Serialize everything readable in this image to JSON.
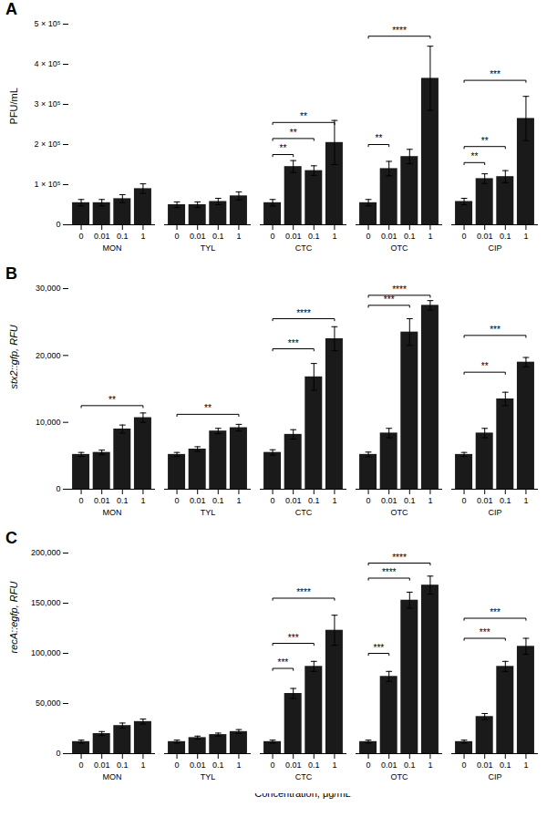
{
  "chart_data": [
    {
      "type": "bar",
      "title": "A",
      "ylabel": "PFU/mL",
      "categories": [
        "MON",
        "TYL",
        "CTC",
        "OTC",
        "CIP"
      ],
      "series": [
        {
          "name": "0",
          "color": "#1a1a1a",
          "values": [
            55000,
            50000,
            55000,
            55000,
            58000
          ],
          "errors": [
            8000,
            7000,
            8000,
            8000,
            8000
          ]
        },
        {
          "name": "0.01",
          "color": "#1a1a1a",
          "values": [
            55000,
            50000,
            145000,
            140000,
            115000
          ],
          "errors": [
            8000,
            7000,
            15000,
            18000,
            12000
          ]
        },
        {
          "name": "0.1",
          "color": "#1a1a1a",
          "values": [
            65000,
            58000,
            135000,
            170000,
            120000
          ],
          "errors": [
            10000,
            8000,
            12000,
            18000,
            15000
          ]
        },
        {
          "name": "1",
          "color": "#1a1a1a",
          "values": [
            90000,
            72000,
            205000,
            365000,
            265000
          ],
          "errors": [
            12000,
            10000,
            55000,
            80000,
            55000
          ]
        }
      ],
      "ylim": [
        0,
        500000
      ],
      "yticks": [
        0,
        {
          "value": 100000,
          "label": "1 × 10⁵"
        },
        {
          "value": 200000,
          "label": "2 × 10⁵"
        },
        {
          "value": 300000,
          "label": "3 × 10⁵"
        },
        {
          "value": 400000,
          "label": "4 × 10⁵"
        },
        {
          "value": 500000,
          "label": "5 × 10⁵"
        }
      ],
      "annotations": [
        {
          "category": "CTC",
          "from": "0",
          "to": "0.01",
          "text": "**",
          "y": 175000,
          "y_text": 182000
        },
        {
          "category": "CTC",
          "from": "0",
          "to": "0.1",
          "text": "**",
          "y": 215000,
          "y_text": 222000
        },
        {
          "category": "CTC",
          "from": "0",
          "to": "1",
          "text": "**",
          "y": 255000,
          "y_text": 262000
        },
        {
          "category": "OTC",
          "from": "0",
          "to": "0.01",
          "text": "**",
          "y": 200000,
          "y_text": 207000
        },
        {
          "category": "OTC",
          "from": "0",
          "to": "1",
          "text": "****",
          "y": 470000,
          "y_text": 477000
        },
        {
          "category": "CIP",
          "from": "0",
          "to": "0.01",
          "text": "**",
          "y": 155000,
          "y_text": 162000
        },
        {
          "category": "CIP",
          "from": "0",
          "to": "0.1",
          "text": "**",
          "y": 195000,
          "y_text": 202000
        },
        {
          "category": "CIP",
          "from": "0",
          "to": "1",
          "text": "***",
          "y": 360000,
          "y_text": 367000
        }
      ]
    },
    {
      "type": "bar",
      "title": "B",
      "ylabel": "stx2::gfp, RFU",
      "categories": [
        "MON",
        "TYL",
        "CTC",
        "OTC",
        "CIP"
      ],
      "series": [
        {
          "name": "0",
          "color": "#1a1a1a",
          "values": [
            5200,
            5200,
            5500,
            5200,
            5200
          ],
          "errors": [
            300,
            300,
            400,
            350,
            300
          ]
        },
        {
          "name": "0.01",
          "color": "#1a1a1a",
          "values": [
            5500,
            6000,
            8200,
            8400,
            8400
          ],
          "errors": [
            350,
            350,
            700,
            700,
            700
          ]
        },
        {
          "name": "0.1",
          "color": "#1a1a1a",
          "values": [
            9000,
            8700,
            16800,
            23500,
            13500
          ],
          "errors": [
            600,
            400,
            2000,
            2000,
            1000
          ]
        },
        {
          "name": "1",
          "color": "#1a1a1a",
          "values": [
            10700,
            9200,
            22500,
            27500,
            19000
          ],
          "errors": [
            700,
            500,
            1800,
            700,
            700
          ]
        }
      ],
      "ylim": [
        0,
        30000
      ],
      "yticks": [
        0,
        {
          "value": 10000,
          "label": "10,000"
        },
        {
          "value": 20000,
          "label": "20,000"
        },
        {
          "value": 30000,
          "label": "30,000"
        }
      ],
      "annotations": [
        {
          "category": "MON",
          "from": "0",
          "to": "1",
          "text": "**",
          "y": 12500,
          "y_text": 12900
        },
        {
          "category": "TYL",
          "from": "0",
          "to": "1",
          "text": "**",
          "y": 11200,
          "y_text": 11600
        },
        {
          "category": "CTC",
          "from": "0",
          "to": "0.1",
          "text": "***",
          "y": 21000,
          "y_text": 21400
        },
        {
          "category": "CTC",
          "from": "0",
          "to": "1",
          "text": "****",
          "y": 25500,
          "y_text": 25900
        },
        {
          "category": "OTC",
          "from": "0",
          "to": "0.1",
          "text": "***",
          "y": 27500,
          "y_text": 27900
        },
        {
          "category": "OTC",
          "from": "0",
          "to": "1",
          "text": "****",
          "y": 29000,
          "y_text": 29400
        },
        {
          "category": "CIP",
          "from": "0",
          "to": "0.1",
          "text": "**",
          "y": 17500,
          "y_text": 17900
        },
        {
          "category": "CIP",
          "from": "0",
          "to": "1",
          "text": "***",
          "y": 23000,
          "y_text": 23400
        }
      ]
    },
    {
      "type": "bar",
      "title": "C",
      "ylabel": "recA::egfp, RFU",
      "xlabel": "Concentration, μg/mL",
      "categories": [
        "MON",
        "TYL",
        "CTC",
        "OTC",
        "CIP"
      ],
      "series": [
        {
          "name": "0",
          "color": "#1a1a1a",
          "values": [
            12000,
            12000,
            12000,
            12000,
            12000
          ],
          "errors": [
            1500,
            1500,
            1500,
            1500,
            1500
          ]
        },
        {
          "name": "0.01",
          "color": "#1a1a1a",
          "values": [
            20000,
            16000,
            60000,
            77000,
            37000
          ],
          "errors": [
            2000,
            1500,
            5000,
            5000,
            3000
          ]
        },
        {
          "name": "0.1",
          "color": "#1a1a1a",
          "values": [
            28000,
            19000,
            87000,
            153000,
            87000
          ],
          "errors": [
            2500,
            1500,
            5000,
            8000,
            5000
          ]
        },
        {
          "name": "1",
          "color": "#1a1a1a",
          "values": [
            32000,
            22000,
            123000,
            168000,
            107000
          ],
          "errors": [
            2500,
            2000,
            15000,
            9000,
            8000
          ]
        }
      ],
      "ylim": [
        0,
        200000
      ],
      "yticks": [
        0,
        {
          "value": 50000,
          "label": "50,000"
        },
        {
          "value": 100000,
          "label": "100,000"
        },
        {
          "value": 150000,
          "label": "150,000"
        },
        {
          "value": 200000,
          "label": "200,000"
        }
      ],
      "annotations": [
        {
          "category": "CTC",
          "from": "0",
          "to": "0.01",
          "text": "***",
          "y": 85000,
          "y_text": 87500
        },
        {
          "category": "CTC",
          "from": "0",
          "to": "0.1",
          "text": "***",
          "y": 110000,
          "y_text": 112500
        },
        {
          "category": "CTC",
          "from": "0",
          "to": "1",
          "text": "****",
          "y": 155000,
          "y_text": 157500
        },
        {
          "category": "OTC",
          "from": "0",
          "to": "0.01",
          "text": "***",
          "y": 100000,
          "y_text": 102500
        },
        {
          "category": "OTC",
          "from": "0",
          "to": "0.1",
          "text": "****",
          "y": 175000,
          "y_text": 177500
        },
        {
          "category": "OTC",
          "from": "0",
          "to": "1",
          "text": "****",
          "y": 190000,
          "y_text": 192500
        },
        {
          "category": "CIP",
          "from": "0",
          "to": "0.1",
          "text": "***",
          "y": 115000,
          "y_text": 117500
        },
        {
          "category": "CIP",
          "from": "0",
          "to": "1",
          "text": "***",
          "y": 135000,
          "y_text": 137500
        }
      ]
    }
  ]
}
